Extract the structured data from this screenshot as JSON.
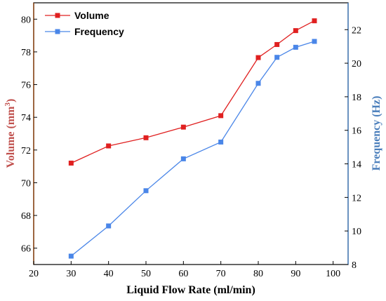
{
  "chart_data": {
    "type": "line",
    "xlabel": "Liquid Flow Rate (ml/min)",
    "x_ticks": [
      20,
      30,
      40,
      50,
      60,
      70,
      80,
      90,
      100
    ],
    "xlim": [
      20,
      104
    ],
    "left_axis": {
      "label_main": "Volume (mm",
      "label_sup": "3",
      "label_end": ")",
      "color": "#c0504d",
      "ticks": [
        66,
        68,
        70,
        72,
        74,
        76,
        78,
        80
      ],
      "ylim": [
        65,
        81
      ]
    },
    "right_axis": {
      "label": "Frequency (Hz)",
      "color": "#4a7ebb",
      "ticks": [
        8,
        10,
        12,
        14,
        16,
        18,
        20,
        22
      ],
      "ylim": [
        8,
        23.6
      ]
    },
    "x": [
      30,
      40,
      50,
      60,
      70,
      80,
      85,
      90,
      95
    ],
    "series": [
      {
        "name": "Volume",
        "axis": "left",
        "color": "#e02020",
        "marker": "square",
        "values": [
          71.2,
          72.25,
          72.75,
          73.4,
          74.1,
          77.65,
          78.45,
          79.3,
          79.9
        ]
      },
      {
        "name": "Frequency",
        "axis": "right",
        "color": "#4a86e8",
        "marker": "square",
        "values": [
          8.5,
          10.3,
          12.4,
          14.3,
          15.3,
          18.8,
          20.35,
          20.95,
          21.3
        ]
      }
    ],
    "legend": "top-left",
    "grid": false
  }
}
